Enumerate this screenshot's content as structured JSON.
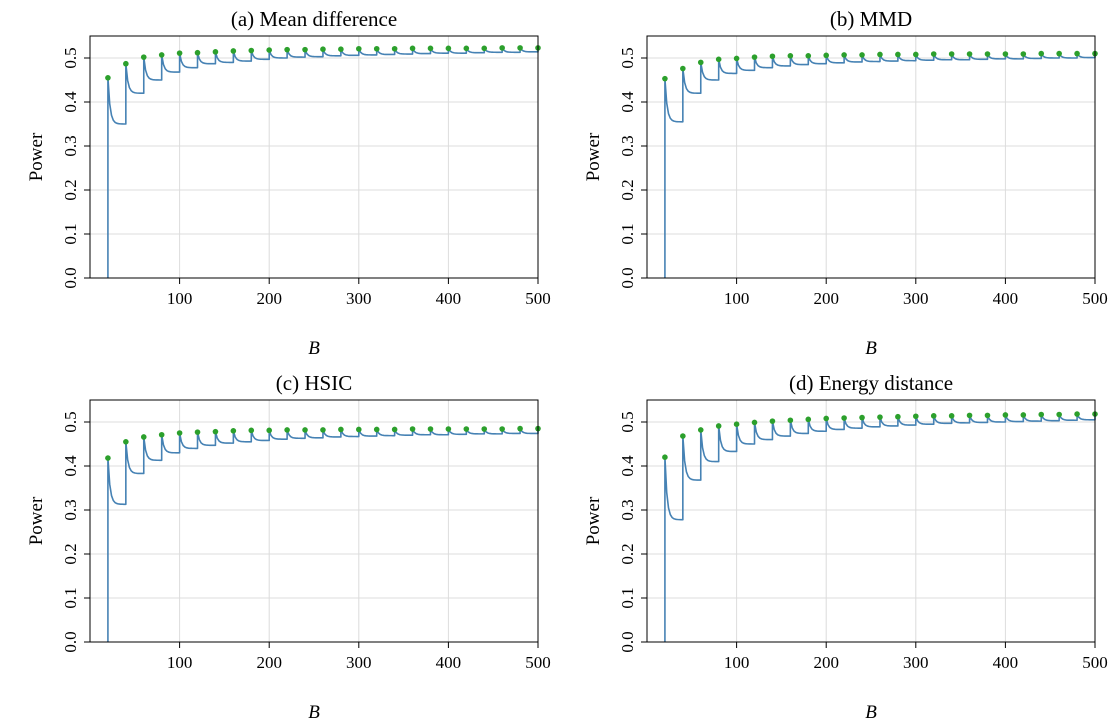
{
  "colors": {
    "line": "#4682b4",
    "points": "#2ca02c",
    "grid": "#dcdcdc",
    "frame": "#000000"
  },
  "chart_data": [
    {
      "type": "line",
      "title": "(a) Mean difference",
      "xlabel": "B",
      "ylabel": "Power",
      "xlim": [
        0,
        500
      ],
      "ylim": [
        0,
        0.55
      ],
      "xticks": [
        100,
        200,
        300,
        400,
        500
      ],
      "yticks": [
        0.0,
        0.1,
        0.2,
        0.3,
        0.4,
        0.5
      ],
      "xtick_labels": [
        "100",
        "200",
        "300",
        "400",
        "500"
      ],
      "ytick_labels": [
        "0.0",
        "0.1",
        "0.2",
        "0.3",
        "0.4",
        "0.5"
      ],
      "grid": true,
      "peaks": [
        0.455,
        0.487,
        0.502,
        0.507,
        0.511,
        0.512,
        0.514,
        0.516,
        0.517,
        0.518,
        0.519,
        0.519,
        0.52,
        0.52,
        0.521,
        0.521,
        0.521,
        0.522,
        0.522,
        0.522,
        0.522,
        0.522,
        0.523,
        0.523,
        0.523
      ],
      "troughs": [
        0.35,
        0.42,
        0.45,
        0.468,
        0.478,
        0.487,
        0.49,
        0.493,
        0.497,
        0.5,
        0.502,
        0.503,
        0.505,
        0.506,
        0.507,
        0.508,
        0.509,
        0.51,
        0.511,
        0.511,
        0.512,
        0.513,
        0.513,
        0.514
      ]
    },
    {
      "type": "line",
      "title": "(b) MMD",
      "xlabel": "B",
      "ylabel": "Power",
      "xlim": [
        0,
        500
      ],
      "ylim": [
        0,
        0.55
      ],
      "xticks": [
        100,
        200,
        300,
        400,
        500
      ],
      "yticks": [
        0.0,
        0.1,
        0.2,
        0.3,
        0.4,
        0.5
      ],
      "xtick_labels": [
        "100",
        "200",
        "300",
        "400",
        "500"
      ],
      "ytick_labels": [
        "0.0",
        "0.1",
        "0.2",
        "0.3",
        "0.4",
        "0.5"
      ],
      "grid": true,
      "peaks": [
        0.453,
        0.476,
        0.49,
        0.497,
        0.499,
        0.502,
        0.504,
        0.505,
        0.505,
        0.506,
        0.507,
        0.507,
        0.508,
        0.508,
        0.508,
        0.509,
        0.509,
        0.509,
        0.509,
        0.509,
        0.509,
        0.51,
        0.51,
        0.51,
        0.51
      ],
      "troughs": [
        0.355,
        0.42,
        0.45,
        0.465,
        0.472,
        0.478,
        0.482,
        0.485,
        0.487,
        0.489,
        0.491,
        0.492,
        0.493,
        0.494,
        0.495,
        0.496,
        0.496,
        0.497,
        0.498,
        0.498,
        0.499,
        0.5,
        0.5,
        0.501
      ]
    },
    {
      "type": "line",
      "title": "(c) HSIC",
      "xlabel": "B",
      "ylabel": "Power",
      "xlim": [
        0,
        500
      ],
      "ylim": [
        0,
        0.55
      ],
      "xticks": [
        100,
        200,
        300,
        400,
        500
      ],
      "yticks": [
        0.0,
        0.1,
        0.2,
        0.3,
        0.4,
        0.5
      ],
      "xtick_labels": [
        "100",
        "200",
        "300",
        "400",
        "500"
      ],
      "ytick_labels": [
        "0.0",
        "0.1",
        "0.2",
        "0.3",
        "0.4",
        "0.5"
      ],
      "grid": true,
      "peaks": [
        0.418,
        0.455,
        0.466,
        0.471,
        0.475,
        0.477,
        0.478,
        0.48,
        0.481,
        0.481,
        0.482,
        0.482,
        0.482,
        0.483,
        0.483,
        0.483,
        0.483,
        0.484,
        0.484,
        0.484,
        0.484,
        0.484,
        0.484,
        0.485,
        0.485
      ],
      "troughs": [
        0.313,
        0.383,
        0.413,
        0.43,
        0.44,
        0.447,
        0.452,
        0.455,
        0.458,
        0.461,
        0.463,
        0.464,
        0.466,
        0.467,
        0.468,
        0.469,
        0.47,
        0.471,
        0.471,
        0.472,
        0.473,
        0.473,
        0.474,
        0.474
      ]
    },
    {
      "type": "line",
      "title": "(d) Energy distance",
      "xlabel": "B",
      "ylabel": "Power",
      "xlim": [
        0,
        500
      ],
      "ylim": [
        0,
        0.55
      ],
      "xticks": [
        100,
        200,
        300,
        400,
        500
      ],
      "yticks": [
        0.0,
        0.1,
        0.2,
        0.3,
        0.4,
        0.5
      ],
      "xtick_labels": [
        "100",
        "200",
        "300",
        "400",
        "500"
      ],
      "ytick_labels": [
        "0.0",
        "0.1",
        "0.2",
        "0.3",
        "0.4",
        "0.5"
      ],
      "grid": true,
      "peaks": [
        0.42,
        0.468,
        0.482,
        0.491,
        0.495,
        0.499,
        0.502,
        0.504,
        0.506,
        0.508,
        0.509,
        0.51,
        0.511,
        0.512,
        0.513,
        0.514,
        0.514,
        0.515,
        0.515,
        0.516,
        0.516,
        0.517,
        0.517,
        0.518,
        0.518
      ],
      "troughs": [
        0.278,
        0.368,
        0.41,
        0.433,
        0.45,
        0.46,
        0.468,
        0.474,
        0.479,
        0.483,
        0.486,
        0.489,
        0.491,
        0.493,
        0.495,
        0.497,
        0.498,
        0.499,
        0.5,
        0.501,
        0.502,
        0.503,
        0.504,
        0.505
      ]
    }
  ]
}
